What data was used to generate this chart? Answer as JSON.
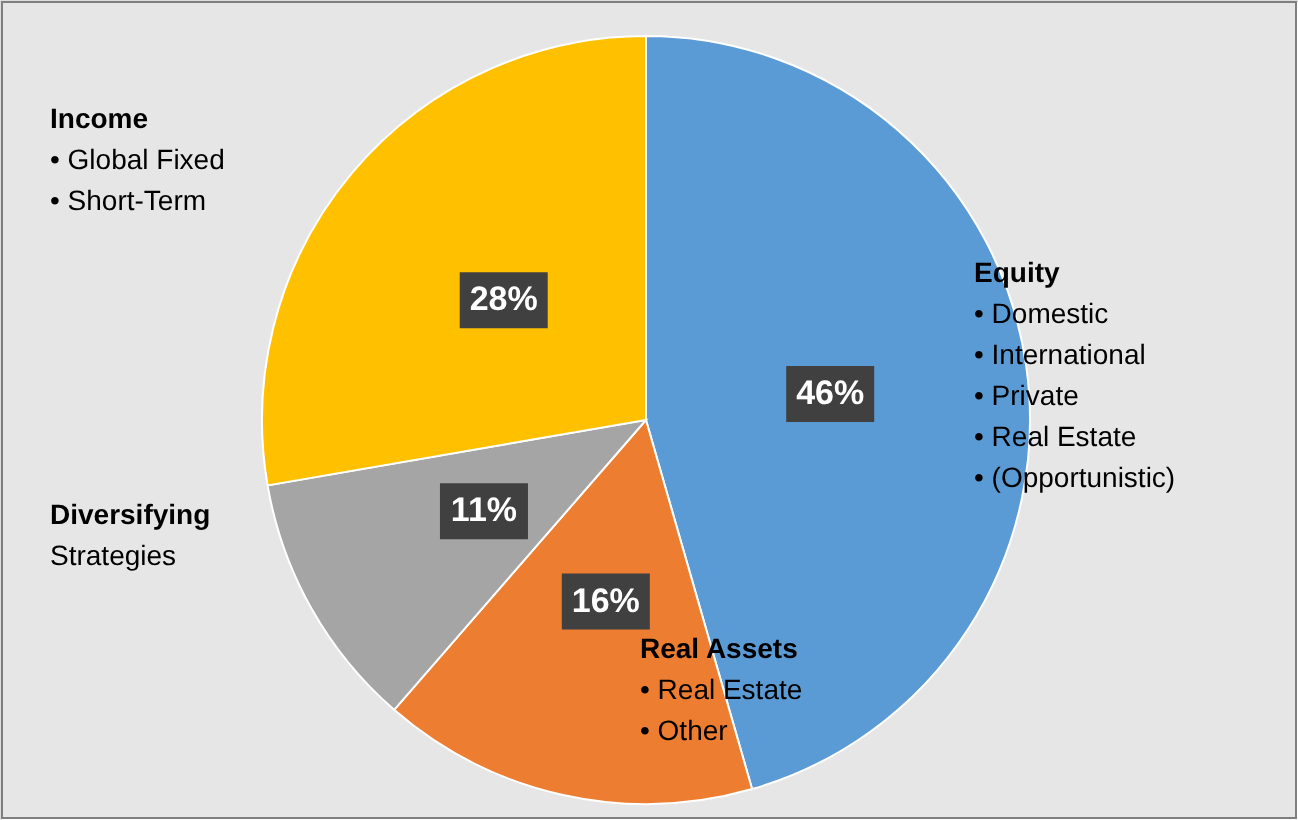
{
  "chart_data": {
    "type": "pie",
    "categories": [
      "Equity\n• Domestic\n• International\n• Private\n• Real Estate\n• (Opportunistic)",
      "Real Assets\n•    Real Estate\n•    Other",
      "Diversifying\nStrategies",
      "Income\n•    Global Fixed\n•    Short-Term"
    ],
    "values": [
      46,
      16,
      11,
      28
    ],
    "value_labels": [
      "46%",
      "16%",
      "11%",
      "28%"
    ],
    "colors": [
      "#5b9bd5",
      "#ed7d31",
      "#a5a5a5",
      "#ffc000"
    ]
  }
}
